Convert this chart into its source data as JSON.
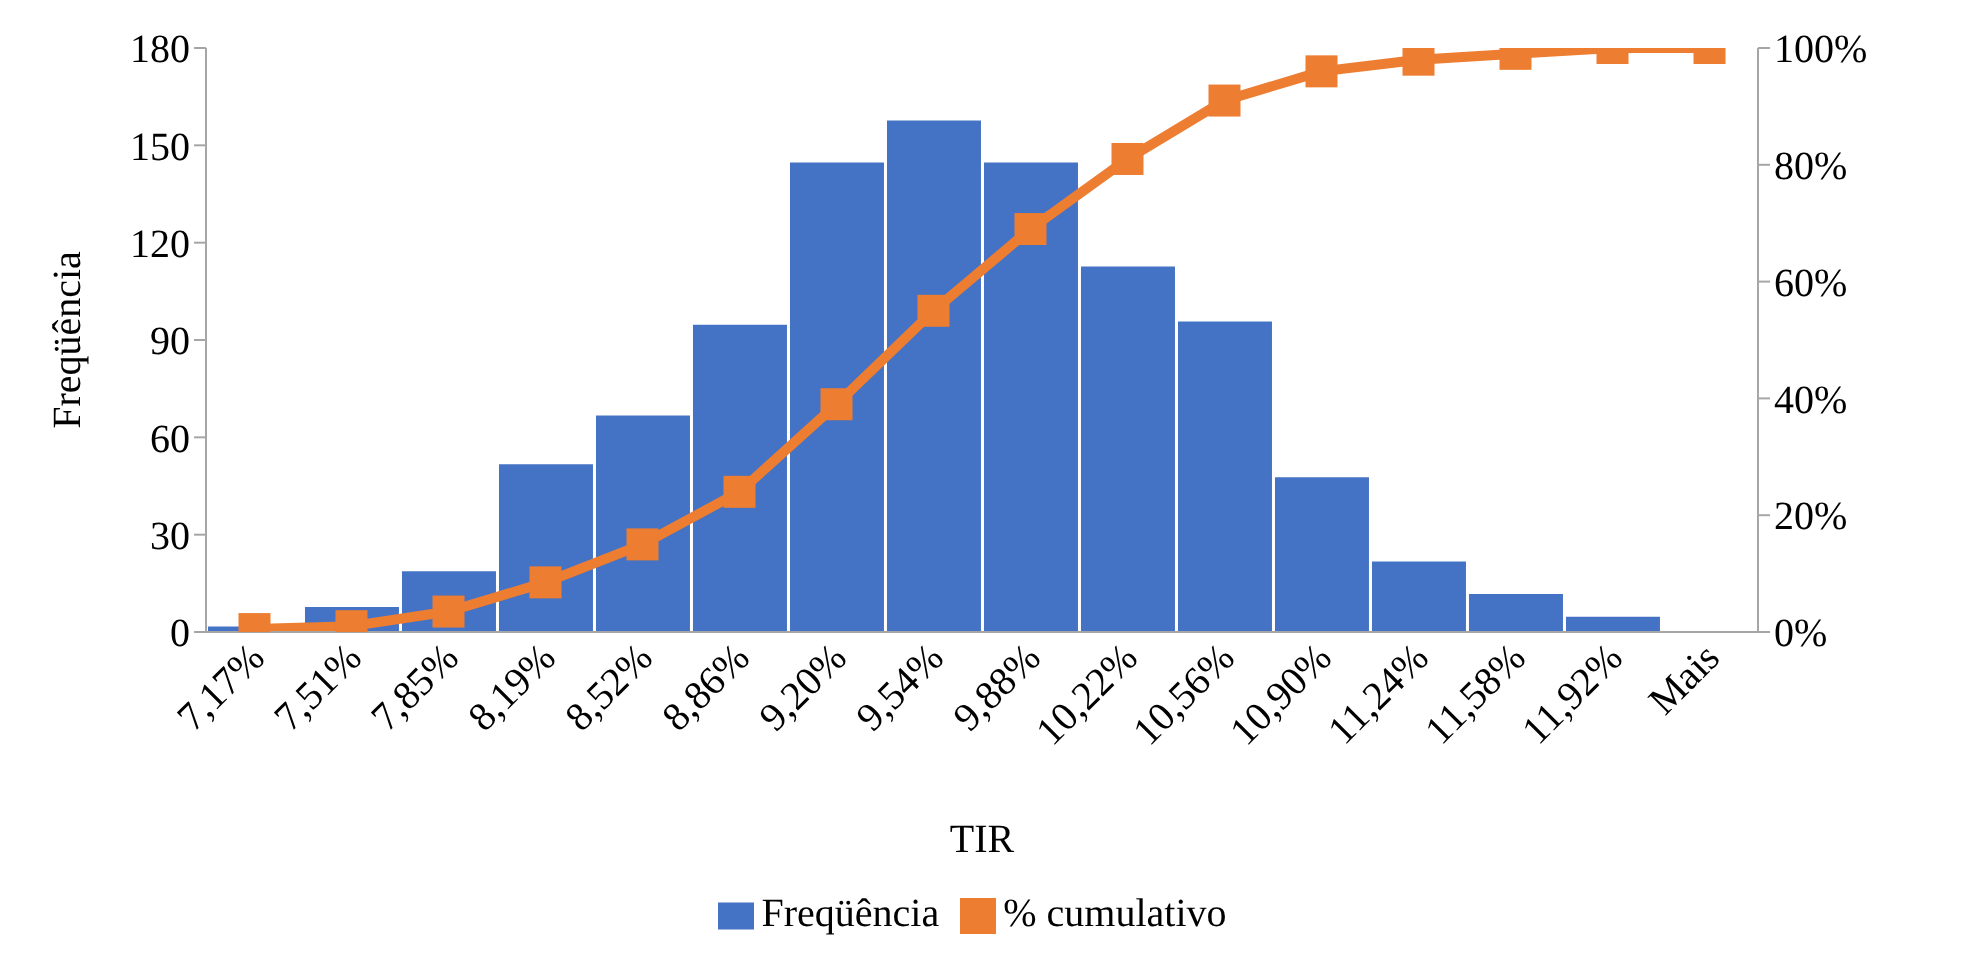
{
  "chart_data": {
    "type": "bar",
    "xlabel": "TIR",
    "ylabel": "Freqüência",
    "categories": [
      "7,17%",
      "7,51%",
      "7,85%",
      "8,19%",
      "8,52%",
      "8,86%",
      "9,20%",
      "9,54%",
      "9,88%",
      "10,22%",
      "10,56%",
      "10,90%",
      "11,24%",
      "11,58%",
      "11,92%",
      "Mais"
    ],
    "series": [
      {
        "name": "Freqüência",
        "color": "#4472c4",
        "values": [
          2,
          8,
          19,
          52,
          67,
          95,
          145,
          158,
          145,
          113,
          96,
          48,
          22,
          12,
          5,
          0
        ]
      },
      {
        "name": "% cumulativo",
        "type": "line",
        "axis": "y2",
        "color": "#ed7d31",
        "marker": "square",
        "values": [
          0.5,
          1,
          3.5,
          8.5,
          15,
          24,
          39,
          55,
          69,
          81,
          91,
          96,
          98,
          99,
          100,
          100
        ]
      }
    ],
    "ylim": [
      0,
      180
    ],
    "yticks": [
      0,
      30,
      60,
      90,
      120,
      150,
      180
    ],
    "y2lim": [
      0,
      100
    ],
    "y2ticks": [
      {
        "value": 0,
        "label": "0%"
      },
      {
        "value": 20,
        "label": "20%"
      },
      {
        "value": 40,
        "label": "40%"
      },
      {
        "value": 60,
        "label": "60%"
      },
      {
        "value": 80,
        "label": "80%"
      },
      {
        "value": 100,
        "label": "100%"
      }
    ],
    "grid": false,
    "legend": "bottom"
  }
}
